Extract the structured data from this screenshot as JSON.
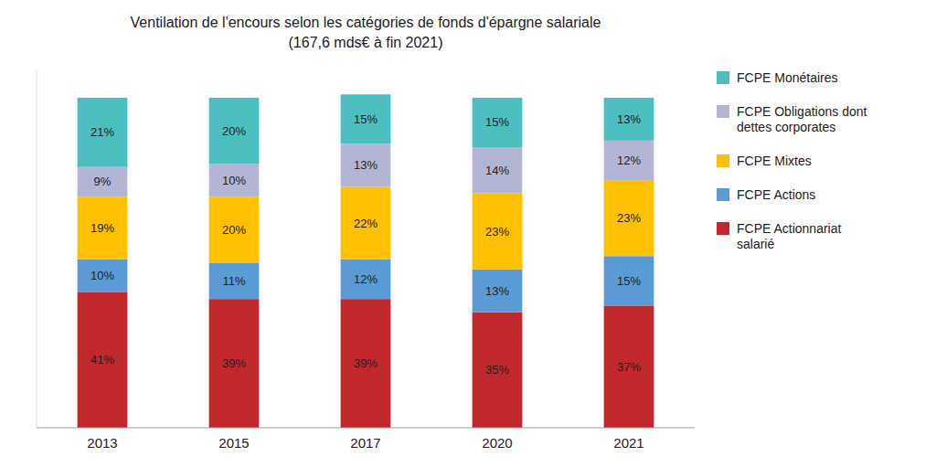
{
  "chart_data": {
    "type": "bar",
    "stacked": true,
    "title": "Ventilation de l'encours selon les catégories de fonds d'épargne salariale",
    "subtitle": "(167,6 mds€ à fin 2021)",
    "categories": [
      "2013",
      "2015",
      "2017",
      "2020",
      "2021"
    ],
    "series": [
      {
        "name": "FCPE Actionnariat\nsalarié",
        "color": "#C0282C",
        "values": [
          41,
          39,
          39,
          35,
          37
        ],
        "value_labels": [
          "41%",
          "39%",
          "39%",
          "35%",
          "37%"
        ]
      },
      {
        "name": "FCPE Actions",
        "color": "#5B9BD5",
        "values": [
          10,
          11,
          12,
          13,
          15
        ],
        "value_labels": [
          "10%",
          "11%",
          "12%",
          "13%",
          "15%"
        ]
      },
      {
        "name": "FCPE Mixtes",
        "color": "#FFC000",
        "values": [
          19,
          20,
          22,
          23,
          23
        ],
        "value_labels": [
          "19%",
          "20%",
          "22%",
          "23%",
          "23%"
        ]
      },
      {
        "name": "FCPE Obligations dont\ndettes corporates",
        "color": "#B4B4D4",
        "values": [
          9,
          10,
          13,
          14,
          12
        ],
        "value_labels": [
          "9%",
          "10%",
          "13%",
          "14%",
          "12%"
        ]
      },
      {
        "name": "FCPE Monétaires",
        "color": "#4BBFBF",
        "values": [
          21,
          20,
          15,
          15,
          13
        ],
        "value_labels": [
          "21%",
          "20%",
          "15%",
          "15%",
          "13%"
        ]
      }
    ],
    "ylim": [
      0,
      108
    ],
    "tick_labels": "x",
    "data_labels": true,
    "legend": "right",
    "grid": false
  }
}
